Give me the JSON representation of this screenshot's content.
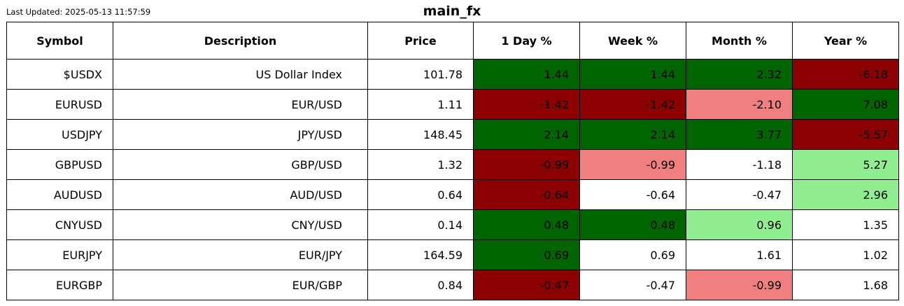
{
  "header": {
    "last_updated": "Last Updated: 2025-05-13 11:57:59",
    "title": "main_fx"
  },
  "colors": {
    "strong_up": "#006400",
    "mild_up": "#90ee90",
    "neutral": "#ffffff",
    "mild_down": "#f08080",
    "strong_down": "#8b0000"
  },
  "chart_data": {
    "type": "table",
    "title": "main_fx",
    "columns": [
      "Symbol",
      "Description",
      "Price",
      "1 Day %",
      "Week %",
      "Month %",
      "Year %"
    ],
    "rows": [
      {
        "symbol": "$USDX",
        "description": "US Dollar Index",
        "price": "101.78",
        "cells": [
          {
            "v": "1.44",
            "c": "strong_up"
          },
          {
            "v": "1.44",
            "c": "strong_up"
          },
          {
            "v": "2.32",
            "c": "strong_up"
          },
          {
            "v": "-6.18",
            "c": "strong_down"
          }
        ]
      },
      {
        "symbol": "EURUSD",
        "description": "EUR/USD",
        "price": "1.11",
        "cells": [
          {
            "v": "-1.42",
            "c": "strong_down"
          },
          {
            "v": "-1.42",
            "c": "strong_down"
          },
          {
            "v": "-2.10",
            "c": "mild_down"
          },
          {
            "v": "7.08",
            "c": "strong_up"
          }
        ]
      },
      {
        "symbol": "USDJPY",
        "description": "JPY/USD",
        "price": "148.45",
        "cells": [
          {
            "v": "2.14",
            "c": "strong_up"
          },
          {
            "v": "2.14",
            "c": "strong_up"
          },
          {
            "v": "3.77",
            "c": "strong_up"
          },
          {
            "v": "-5.57",
            "c": "strong_down"
          }
        ]
      },
      {
        "symbol": "GBPUSD",
        "description": "GBP/USD",
        "price": "1.32",
        "cells": [
          {
            "v": "-0.99",
            "c": "strong_down"
          },
          {
            "v": "-0.99",
            "c": "mild_down"
          },
          {
            "v": "-1.18",
            "c": "neutral"
          },
          {
            "v": "5.27",
            "c": "mild_up"
          }
        ]
      },
      {
        "symbol": "AUDUSD",
        "description": "AUD/USD",
        "price": "0.64",
        "cells": [
          {
            "v": "-0.64",
            "c": "strong_down"
          },
          {
            "v": "-0.64",
            "c": "neutral"
          },
          {
            "v": "-0.47",
            "c": "neutral"
          },
          {
            "v": "2.96",
            "c": "mild_up"
          }
        ]
      },
      {
        "symbol": "CNYUSD",
        "description": "CNY/USD",
        "price": "0.14",
        "cells": [
          {
            "v": "0.48",
            "c": "strong_up"
          },
          {
            "v": "0.48",
            "c": "strong_up"
          },
          {
            "v": "0.96",
            "c": "mild_up"
          },
          {
            "v": "1.35",
            "c": "neutral"
          }
        ]
      },
      {
        "symbol": "EURJPY",
        "description": "EUR/JPY",
        "price": "164.59",
        "cells": [
          {
            "v": "0.69",
            "c": "strong_up"
          },
          {
            "v": "0.69",
            "c": "neutral"
          },
          {
            "v": "1.61",
            "c": "neutral"
          },
          {
            "v": "1.02",
            "c": "neutral"
          }
        ]
      },
      {
        "symbol": "EURGBP",
        "description": "EUR/GBP",
        "price": "0.84",
        "cells": [
          {
            "v": "-0.47",
            "c": "strong_down"
          },
          {
            "v": "-0.47",
            "c": "neutral"
          },
          {
            "v": "-0.99",
            "c": "mild_down"
          },
          {
            "v": "1.68",
            "c": "neutral"
          }
        ]
      }
    ]
  }
}
